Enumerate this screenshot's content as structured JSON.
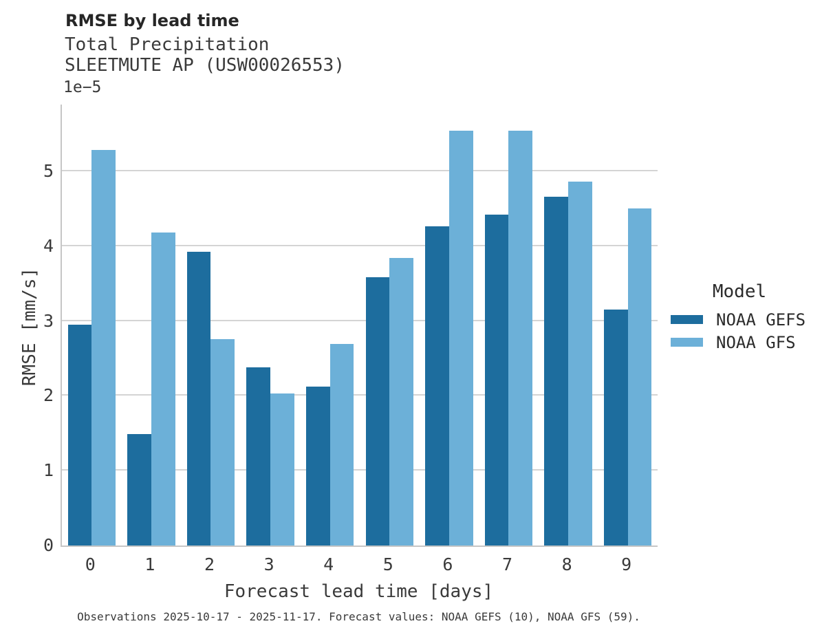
{
  "header": {
    "title": "RMSE by lead time",
    "subtitle1": "Total Precipitation",
    "subtitle2": "SLEETMUTE AP (USW00026553)"
  },
  "axes": {
    "y_offset_label": "1e−5",
    "y_label": "RMSE [mm/s]",
    "x_label": "Forecast lead time [days]",
    "y_ticks": [
      "0",
      "1",
      "2",
      "3",
      "4",
      "5"
    ],
    "x_ticks": [
      "0",
      "1",
      "2",
      "3",
      "4",
      "5",
      "6",
      "7",
      "8",
      "9"
    ]
  },
  "legend": {
    "title": "Model",
    "items": [
      {
        "label": "NOAA GEFS",
        "color": "#1d6d9e"
      },
      {
        "label": "NOAA GFS",
        "color": "#6cb0d8"
      }
    ]
  },
  "caption": "Observations 2025-10-17 - 2025-11-17. Forecast values: NOAA GEFS (10), NOAA GFS (59).",
  "colors": {
    "noaa_gefs": "#1d6d9e",
    "noaa_gfs": "#6cb0d8",
    "gridline": "#d4d4d4",
    "spine": "#c6c6c6",
    "text": "#3a3a3a",
    "title_text": "#262626"
  },
  "chart_data": {
    "type": "bar",
    "title": "RMSE by lead time",
    "subtitle": [
      "Total Precipitation",
      "SLEETMUTE AP (USW00026553)"
    ],
    "categories": [
      0,
      1,
      2,
      3,
      4,
      5,
      6,
      7,
      8,
      9
    ],
    "series": [
      {
        "name": "NOAA GEFS",
        "color": "#1d6d9e",
        "values": [
          2.95,
          1.49,
          3.92,
          2.38,
          2.12,
          3.58,
          4.26,
          4.42,
          4.66,
          3.15
        ]
      },
      {
        "name": "NOAA GFS",
        "color": "#6cb0d8",
        "values": [
          5.28,
          4.18,
          2.76,
          2.03,
          2.69,
          3.84,
          5.54,
          5.54,
          4.86,
          4.5
        ]
      }
    ],
    "value_unit": "mm/s",
    "value_scale": "1e-5",
    "xlabel": "Forecast lead time [days]",
    "ylabel": "RMSE [mm/s]",
    "ylim": [
      0,
      5.89
    ],
    "yticks": [
      0,
      1,
      2,
      3,
      4,
      5
    ],
    "grid": "horizontal",
    "legend_title": "Model",
    "legend_position": "center right",
    "caption": "Observations 2025-10-17 - 2025-11-17. Forecast values: NOAA GEFS (10), NOAA GFS (59)."
  }
}
